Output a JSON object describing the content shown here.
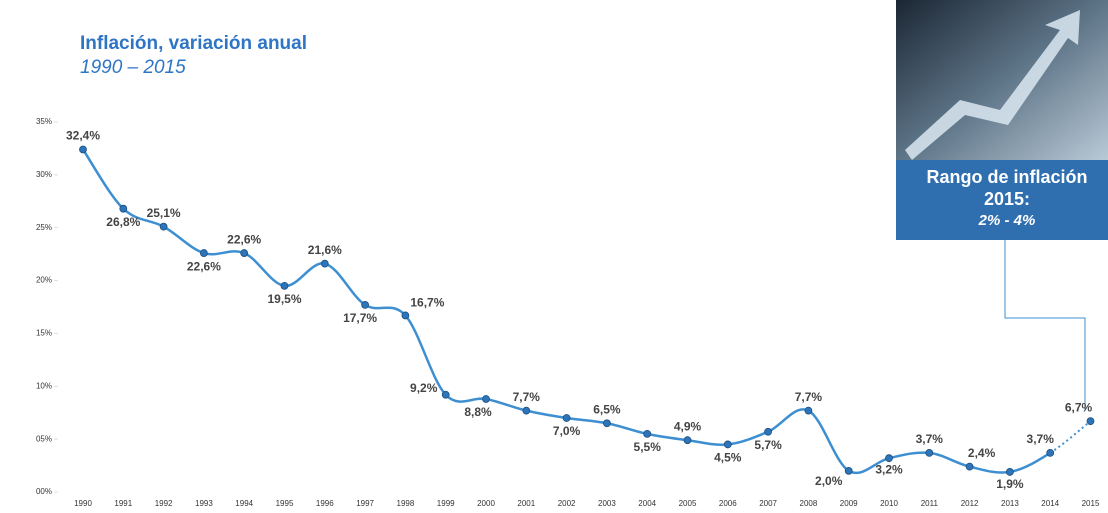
{
  "chart_data": {
    "type": "line",
    "title": "Inflación, variación anual",
    "subtitle": "1990 – 2015",
    "categories": [
      "1990",
      "1991",
      "1992",
      "1993",
      "1994",
      "1995",
      "1996",
      "1997",
      "1998",
      "1999",
      "2000",
      "2001",
      "2002",
      "2003",
      "2004",
      "2005",
      "2006",
      "2007",
      "2008",
      "2009",
      "2010",
      "2011",
      "2012",
      "2013",
      "2014",
      "2015"
    ],
    "values": [
      32.4,
      26.8,
      25.1,
      22.6,
      22.6,
      19.5,
      21.6,
      17.7,
      16.7,
      9.2,
      8.8,
      7.7,
      7.0,
      6.5,
      5.5,
      4.9,
      4.5,
      5.7,
      7.7,
      2.0,
      3.2,
      3.7,
      2.4,
      1.9,
      3.7,
      6.7
    ],
    "value_labels": [
      "32,4%",
      "26,8%",
      "25,1%",
      "22,6%",
      "22,6%",
      "19,5%",
      "21,6%",
      "17,7%",
      "16,7%",
      "9,2%",
      "8,8%",
      "7,7%",
      "7,0%",
      "6,5%",
      "5,5%",
      "4,9%",
      "4,5%",
      "5,7%",
      "7,7%",
      "2,0%",
      "3,2%",
      "3,7%",
      "2,4%",
      "1,9%",
      "3,7%",
      "6,7%"
    ],
    "color": "#3d8fd1",
    "last_segment_dotted": true,
    "ylim": [
      0,
      35
    ],
    "yticks": [
      {
        "value": 0,
        "label": "00%"
      },
      {
        "value": 5,
        "label": "05%"
      },
      {
        "value": 10,
        "label": "10%"
      },
      {
        "value": 15,
        "label": "15%"
      },
      {
        "value": 20,
        "label": "20%"
      },
      {
        "value": 25,
        "label": "25%"
      },
      {
        "value": 30,
        "label": "30%"
      },
      {
        "value": 35,
        "label": "35%"
      }
    ],
    "annotation": {
      "title": "Rango de inflación 2015:",
      "range": "2% - 4%"
    }
  }
}
